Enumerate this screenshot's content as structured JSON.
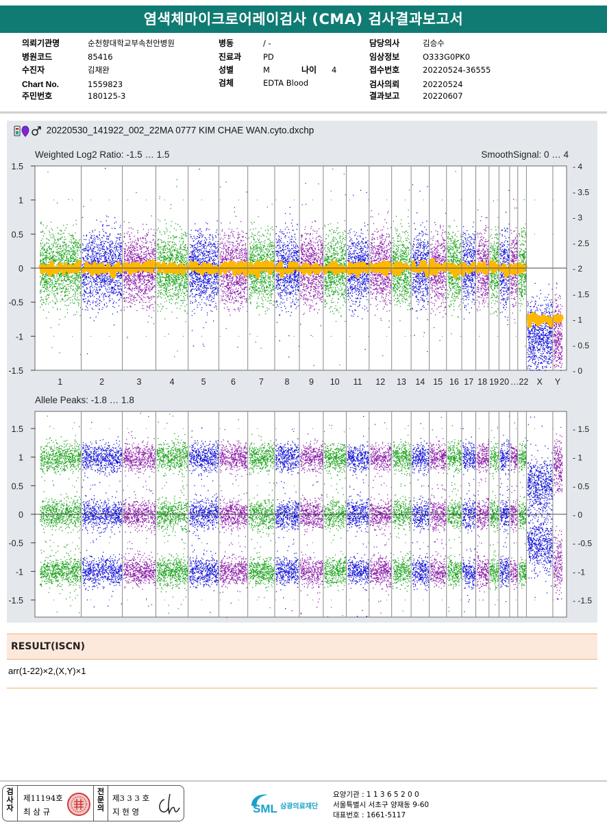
{
  "report_title": "염색체마이크로어레이검사 (CMA) 검사결과보고서",
  "info": {
    "hospital_label": "의뢰기관명",
    "hospital": "순천향대학교부속천안병원",
    "code_label": "병원코드",
    "code": "85416",
    "patient_label": "수진자",
    "patient": "김채완",
    "chart_label": "Chart No.",
    "chart": "1559823",
    "rrn_label": "주민번호",
    "rrn": "180125-3",
    "ward_label": "병동",
    "ward": "/ -",
    "dept_label": "진료과",
    "dept": "PD",
    "sex_label": "성별",
    "sex": "M",
    "age_label": "나이",
    "age": "4",
    "specimen_label": "검체",
    "specimen": "EDTA Blood",
    "doctor_label": "담당의사",
    "doctor": "김승수",
    "clinical_label": "임상정보",
    "clinical": "O333G0PK0",
    "receipt_label": "접수번호",
    "receipt": "20220524-36555",
    "request_label": "검사의뢰",
    "request": "20220524",
    "report_label": "결과보고",
    "report": "20220607"
  },
  "file_name": "20220530_141922_002_22MA 0777 KIM CHAE WAN.cyto.dxchp",
  "chart_data": [
    {
      "type": "scatter",
      "title": "Weighted Log2 Ratio: -1.5 … 1.5",
      "title_right": "SmoothSignal: 0 … 4",
      "ylim": [
        -1.5,
        1.5
      ],
      "y2lim": [
        0,
        4
      ],
      "yticks": [
        "1.5",
        "1",
        "0.5",
        "0",
        "-0.5",
        "-1",
        "-1.5"
      ],
      "y2ticks": [
        "4",
        "3.5",
        "3",
        "2.5",
        "2",
        "1.5",
        "1",
        "0.5",
        "0"
      ],
      "categories": [
        "1",
        "2",
        "3",
        "4",
        "5",
        "6",
        "7",
        "8",
        "9",
        "10",
        "11",
        "12",
        "13",
        "14",
        "15",
        "16",
        "17",
        "18",
        "19",
        "20",
        "21",
        "22",
        "X",
        "Y"
      ],
      "x_labels": [
        "1",
        "2",
        "3",
        "4",
        "5",
        "6",
        "7",
        "8",
        "9",
        "10",
        "11",
        "12",
        "13",
        "14",
        "15",
        "16",
        "17",
        "18",
        "19",
        "20",
        "…22",
        "X",
        "Y"
      ],
      "series_colors": [
        "#1aa31a",
        "#1010d8",
        "#8b1aa8"
      ],
      "smooth_color": "#ffb800",
      "smooth_signal": {
        "autosomes": 2,
        "X": 1,
        "Y": 1
      }
    },
    {
      "type": "scatter",
      "title": "Allele Peaks: -1.8 … 1.8",
      "ylim": [
        -1.8,
        1.8
      ],
      "yticks": [
        "1.5",
        "1",
        "0.5",
        "0",
        "-0.5",
        "-1",
        "-1.5"
      ],
      "y2ticks": [
        "1.5",
        "1",
        "0.5",
        "0",
        "-0.5",
        "-1",
        "-1.5"
      ],
      "allele_bands": {
        "autosomes": [
          1,
          0,
          -1
        ],
        "X": [
          0.5,
          -0.5
        ]
      }
    }
  ],
  "result": {
    "heading": "RESULT(ISCN)",
    "text": "arr(1-22)×2,(X,Y)×1"
  },
  "footer": {
    "examiner_label": "검사자",
    "examiner_no": "제11194호",
    "examiner_name": "최 삼 규",
    "specialist_label": "전문의",
    "specialist_no": "제3 3 3 호",
    "specialist_name": "지 현 영",
    "lab_name": "삼광의료재단",
    "lab_line1": "요양기관 : 1 1 3 6 5 2 0 0",
    "lab_line2": "서울특별시 서초구 양재동 9-60",
    "lab_line3": "대표번호 : 1661-5117"
  }
}
